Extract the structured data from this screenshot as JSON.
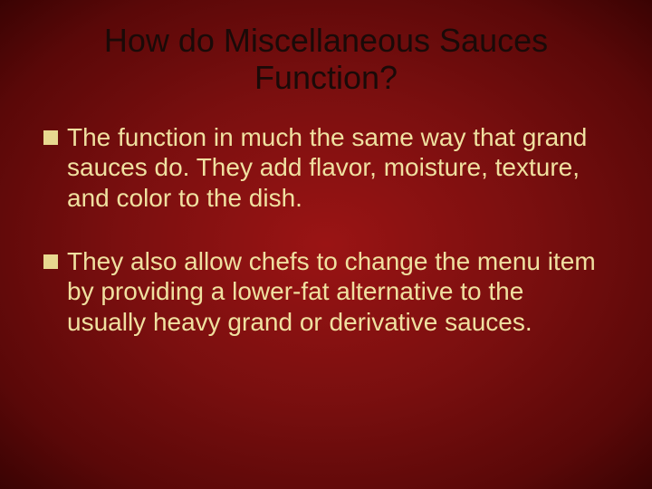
{
  "slide": {
    "background_gradient": {
      "inner": "#9a1414",
      "mid": "#7a0f0f",
      "outer": "#5a0808",
      "edge": "#3a0303"
    },
    "title_color": "#1a0a08",
    "body_text_color": "#f0e0a0",
    "bullet_marker_color": "#e8d890",
    "title_fontsize": 36,
    "body_fontsize": 28,
    "title": "How do Miscellaneous Sauces Function?",
    "bullets": [
      "The function in much the same way that grand sauces do.  They add flavor, moisture, texture, and color to the dish.",
      "They also allow chefs to change the menu item by providing a lower-fat alternative to the usually heavy grand or derivative sauces."
    ]
  }
}
